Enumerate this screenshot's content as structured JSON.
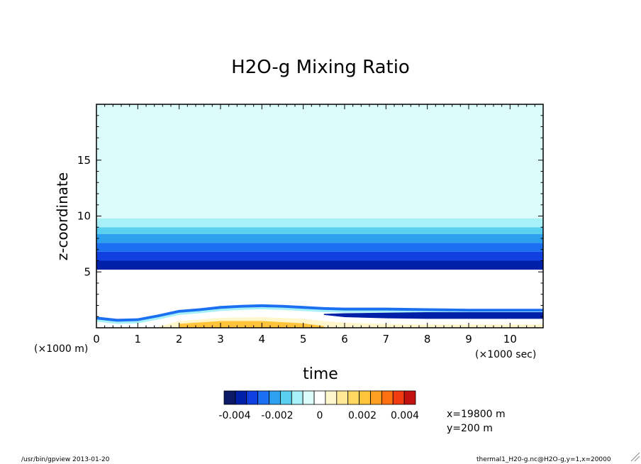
{
  "chart_data": {
    "type": "heatmap",
    "title": "H2O-g Mixing Ratio",
    "xlabel": "time",
    "ylabel": "z-coordinate",
    "x_unit_label": "(×1000 sec)",
    "y_unit_label": "(×1000 m)",
    "xlim": [
      0,
      10.8
    ],
    "ylim": [
      0,
      20
    ],
    "x_ticks": [
      "0",
      "1",
      "2",
      "3",
      "4",
      "5",
      "6",
      "7",
      "8",
      "9",
      "10"
    ],
    "y_ticks": [
      "5",
      "10",
      "15"
    ],
    "colorbar": {
      "levels": [
        -0.0045,
        -0.004,
        -0.0035,
        -0.003,
        -0.0025,
        -0.002,
        -0.0015,
        -0.001,
        -0.0005,
        0,
        0.0005,
        0.001,
        0.0015,
        0.002,
        0.0025,
        0.003,
        0.0035,
        0.004,
        0.0045
      ],
      "colors": [
        "#0a1a66",
        "#0020a8",
        "#1040e0",
        "#1a70f0",
        "#2ea0f0",
        "#5ad0f0",
        "#a8f0f8",
        "#dcfcfc",
        "#ffffff",
        "#fff6cc",
        "#ffe896",
        "#ffd862",
        "#ffc43a",
        "#ffa020",
        "#ff7010",
        "#f03c10",
        "#c01010"
      ],
      "labels": [
        "-0.004",
        "-0.002",
        "0",
        "0.002",
        "0.004"
      ]
    },
    "upper_layers": [
      {
        "z_bottom": 5.2,
        "z_top": 6.0,
        "color": "#0020a8"
      },
      {
        "z_bottom": 6.0,
        "z_top": 6.8,
        "color": "#1040e0"
      },
      {
        "z_bottom": 6.8,
        "z_top": 7.6,
        "color": "#1a70f0"
      },
      {
        "z_bottom": 7.6,
        "z_top": 8.4,
        "color": "#2ea0f0"
      },
      {
        "z_bottom": 8.4,
        "z_top": 9.0,
        "color": "#5ad0f0"
      },
      {
        "z_bottom": 9.0,
        "z_top": 9.8,
        "color": "#a8f0f8"
      },
      {
        "z_bottom": 9.8,
        "z_top": 20.0,
        "color": "#dcfcfc"
      }
    ],
    "lower_blue_boundary": {
      "x": [
        0,
        0.5,
        1.0,
        1.5,
        2.0,
        2.5,
        3.0,
        3.5,
        4.0,
        4.5,
        5.0,
        5.5,
        6.0,
        7.0,
        8.0,
        9.0,
        10.0,
        10.8
      ],
      "z": [
        1.0,
        0.8,
        0.85,
        1.2,
        1.6,
        1.75,
        1.95,
        2.05,
        2.1,
        2.05,
        1.95,
        1.85,
        1.8,
        1.8,
        1.75,
        1.7,
        1.7,
        1.7
      ]
    },
    "lower_positive_boundary": {
      "x": [
        1.5,
        2.0,
        3.0,
        4.0,
        5.0,
        5.5,
        6.0,
        7.0,
        8.0,
        9.0,
        10.0,
        10.8
      ],
      "z": [
        0.1,
        0.6,
        0.9,
        0.95,
        0.8,
        0.6,
        0.45,
        0.35,
        0.3,
        0.3,
        0.3,
        0.3
      ]
    },
    "lower_dark_band": {
      "x": [
        5.5,
        6.0,
        7.0,
        8.0,
        9.0,
        10.0,
        10.8
      ],
      "z_low": [
        1.15,
        0.95,
        0.85,
        0.8,
        0.8,
        0.8,
        0.8
      ],
      "z_high": [
        1.25,
        1.3,
        1.35,
        1.4,
        1.4,
        1.4,
        1.4
      ]
    },
    "annotations": [
      "x=19800 m",
      "y=200 m"
    ]
  },
  "footer": {
    "left": "/usr/bin/gpview  2013-01-20",
    "right": "thermal1_H20-g.nc@H2O-g,y=1,x=20000"
  }
}
